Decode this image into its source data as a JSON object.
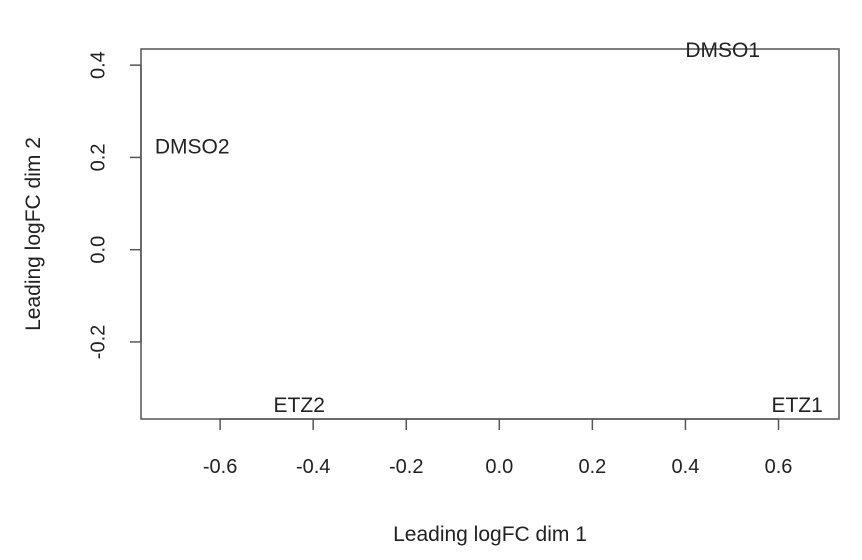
{
  "chart_data": {
    "type": "scatter",
    "title": "",
    "xlabel": "Leading logFC dim 1",
    "ylabel": "Leading logFC dim 2",
    "xlim": [
      -0.77,
      0.73
    ],
    "ylim": [
      -0.367,
      0.435
    ],
    "x_ticks": [
      -0.6,
      -0.4,
      -0.2,
      0.0,
      0.2,
      0.4,
      0.6
    ],
    "x_tick_labels": [
      "-0.6",
      "-0.4",
      "-0.2",
      "0.0",
      "0.2",
      "0.4",
      "0.6"
    ],
    "y_ticks": [
      -0.2,
      0.0,
      0.2,
      0.4
    ],
    "y_tick_labels": [
      "-0.2",
      "0.0",
      "0.2",
      "0.4"
    ],
    "grid": false,
    "points": [
      {
        "label": "DMSO1",
        "x": 0.48,
        "y": 0.43
      },
      {
        "label": "DMSO2",
        "x": -0.66,
        "y": 0.22
      },
      {
        "label": "ETZ1",
        "x": 0.64,
        "y": -0.34
      },
      {
        "label": "ETZ2",
        "x": -0.43,
        "y": -0.34
      }
    ]
  }
}
